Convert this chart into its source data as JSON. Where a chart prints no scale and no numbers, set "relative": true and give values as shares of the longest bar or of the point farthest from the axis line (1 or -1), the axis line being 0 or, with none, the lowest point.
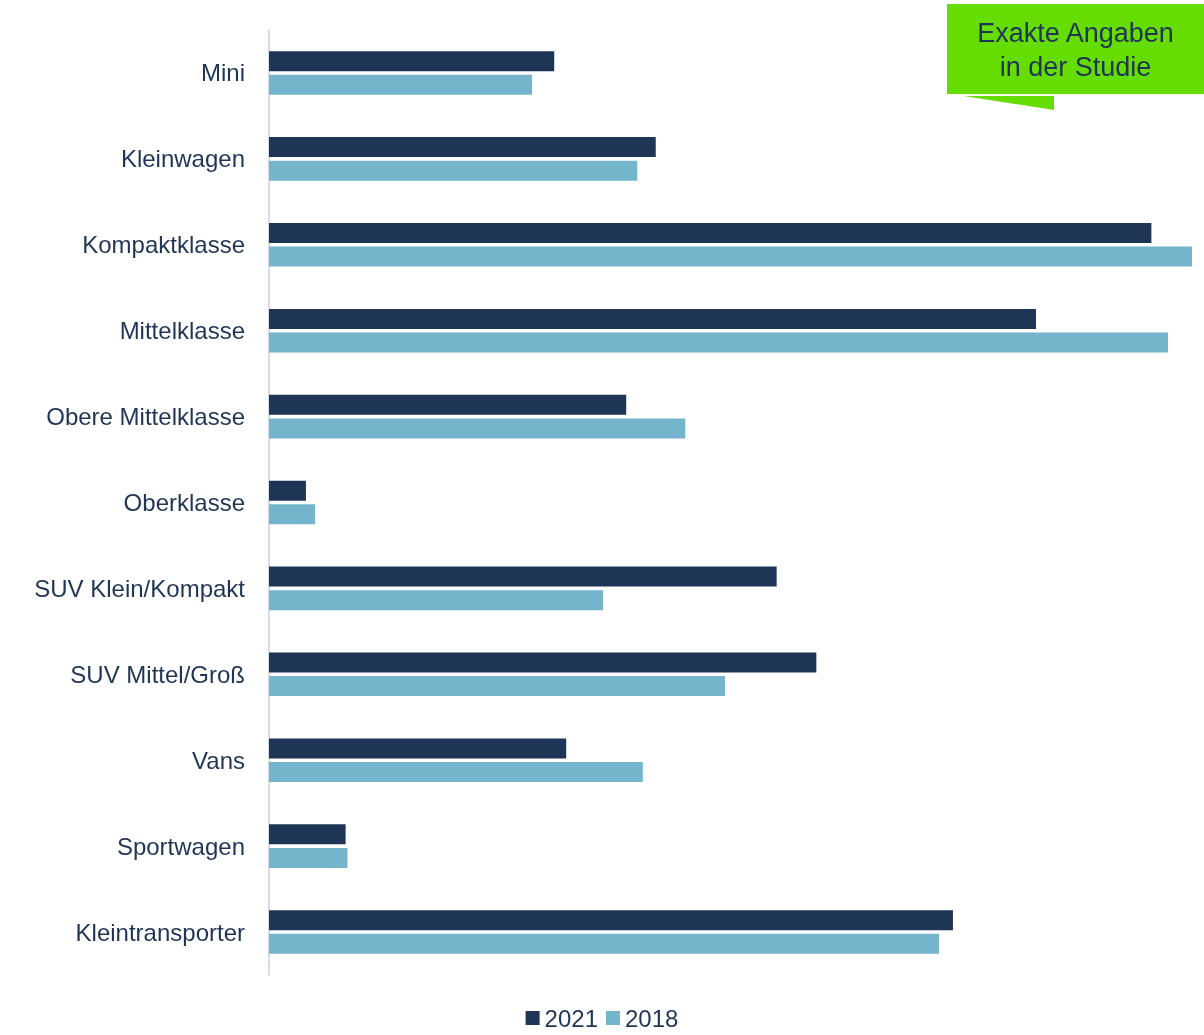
{
  "chart_data": {
    "type": "bar",
    "orientation": "horizontal",
    "relative": true,
    "categories": [
      "Mini",
      "Kleinwagen",
      "Kompaktklasse",
      "Mittelklasse",
      "Obere Mittelklasse",
      "Oberklasse",
      "SUV Klein/Kompakt",
      "SUV Mittel/Groß",
      "Vans",
      "Sportwagen",
      "Kleintransporter"
    ],
    "series": [
      {
        "name": "2021",
        "color": "#1f3556",
        "values": [
          0.309,
          0.419,
          0.956,
          0.831,
          0.387,
          0.04,
          0.55,
          0.593,
          0.322,
          0.083,
          0.741
        ]
      },
      {
        "name": "2018",
        "color": "#74b5cb",
        "values": [
          0.285,
          0.399,
          1.0,
          0.974,
          0.451,
          0.05,
          0.362,
          0.494,
          0.405,
          0.085,
          0.726
        ]
      }
    ],
    "legend": "bottom",
    "annotations": [
      "Exakte Angaben in der Studie"
    ]
  }
}
